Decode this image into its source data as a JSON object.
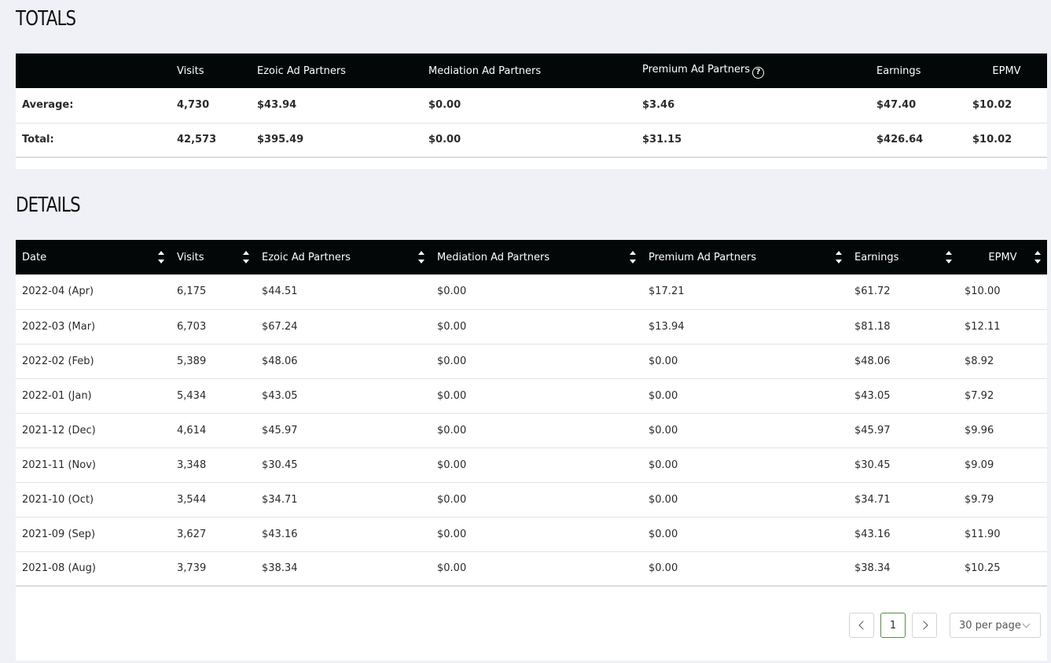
{
  "totals": {
    "title": "TOTALS",
    "headers": [
      "",
      "Visits",
      "Ezoic Ad Partners",
      "Mediation Ad Partners",
      "Premium Ad Partners",
      "Earnings",
      "EPMV"
    ],
    "help_icon": "help-circle-icon",
    "rows": [
      [
        "Average:",
        "4,730",
        "$43.94",
        "$0.00",
        "$3.46",
        "$47.40",
        "$10.02"
      ],
      [
        "Total:",
        "42,573",
        "$395.49",
        "$0.00",
        "$31.15",
        "$426.64",
        "$10.02"
      ]
    ]
  },
  "details": {
    "title": "DETAILS",
    "headers": [
      "Date",
      "Visits",
      "Ezoic Ad Partners",
      "Mediation Ad Partners",
      "Premium Ad Partners",
      "Earnings",
      "EPMV"
    ],
    "rows": [
      [
        "2022-04 (Apr)",
        "6,175",
        "$44.51",
        "$0.00",
        "$17.21",
        "$61.72",
        "$10.00"
      ],
      [
        "2022-03 (Mar)",
        "6,703",
        "$67.24",
        "$0.00",
        "$13.94",
        "$81.18",
        "$12.11"
      ],
      [
        "2022-02 (Feb)",
        "5,389",
        "$48.06",
        "$0.00",
        "$0.00",
        "$48.06",
        "$8.92"
      ],
      [
        "2022-01 (Jan)",
        "5,434",
        "$43.05",
        "$0.00",
        "$0.00",
        "$43.05",
        "$7.92"
      ],
      [
        "2021-12 (Dec)",
        "4,614",
        "$45.97",
        "$0.00",
        "$0.00",
        "$45.97",
        "$9.96"
      ],
      [
        "2021-11 (Nov)",
        "3,348",
        "$30.45",
        "$0.00",
        "$0.00",
        "$30.45",
        "$9.09"
      ],
      [
        "2021-10 (Oct)",
        "3,544",
        "$34.71",
        "$0.00",
        "$0.00",
        "$34.71",
        "$9.79"
      ],
      [
        "2021-09 (Sep)",
        "3,627",
        "$43.16",
        "$0.00",
        "$0.00",
        "$43.16",
        "$11.90"
      ],
      [
        "2021-08 (Aug)",
        "3,739",
        "$38.34",
        "$0.00",
        "$0.00",
        "$38.34",
        "$10.25"
      ]
    ]
  },
  "pagination": {
    "prev_icon": "chevron-left-icon",
    "current_page": "1",
    "next_icon": "chevron-right-icon",
    "per_page": "30 per page",
    "per_page_icon": "chevron-down-icon"
  }
}
